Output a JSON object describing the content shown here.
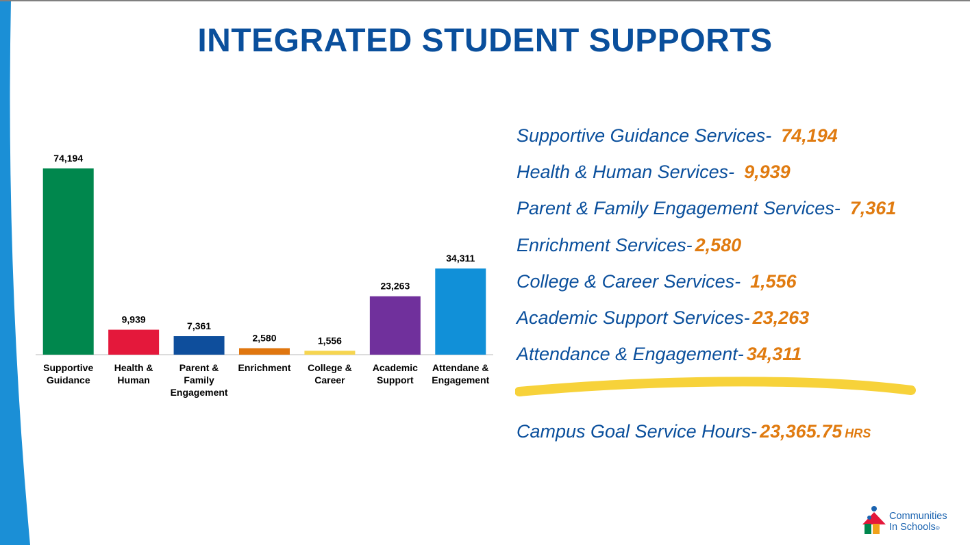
{
  "title": "INTEGRATED STUDENT SUPPORTS",
  "colors": {
    "title": "#0a4f9c",
    "accent": "#e07b10",
    "side_band": "#1b8fd6",
    "highlight": "#f7d23a"
  },
  "chart_data": {
    "type": "bar",
    "categories": [
      [
        "Supportive",
        "Guidance"
      ],
      [
        "Health &",
        "Human"
      ],
      [
        "Parent &",
        "Family",
        "Engagement"
      ],
      [
        "Enrichment"
      ],
      [
        "College &",
        "Career"
      ],
      [
        "Academic",
        "Support"
      ],
      [
        "Attendane &",
        "Engagement"
      ]
    ],
    "values": [
      74194,
      9939,
      7361,
      2580,
      1556,
      23263,
      34311
    ],
    "value_labels": [
      "74,194",
      "9,939",
      "7,361",
      "2,580",
      "1,556",
      "23,263",
      "34,311"
    ],
    "colors": [
      "#00874d",
      "#e4183b",
      "#0e4e9c",
      "#e0760f",
      "#f6d550",
      "#70309c",
      "#1190d8"
    ],
    "ylim": [
      0,
      74194
    ],
    "grid": false,
    "legend": "none"
  },
  "stats": [
    {
      "label": "Supportive Guidance Services-",
      "value": "74,194"
    },
    {
      "label": "Health & Human Services-",
      "value": "9,939"
    },
    {
      "label": "Parent & Family Engagement Services-",
      "value": "7,361"
    },
    {
      "label": "Enrichment Services-",
      "value": "2,580"
    },
    {
      "label": "College & Career Services-",
      "value": "1,556"
    },
    {
      "label": "Academic Support Services-",
      "value": "23,263"
    },
    {
      "label": "Attendance & Engagement-",
      "value": "34,311"
    }
  ],
  "goal": {
    "label": "Campus Goal Service Hours-",
    "value": "23,365.75",
    "unit": "HRS"
  },
  "logo": {
    "line1": "Communities",
    "line2": "In Schools",
    "mark": "®"
  }
}
